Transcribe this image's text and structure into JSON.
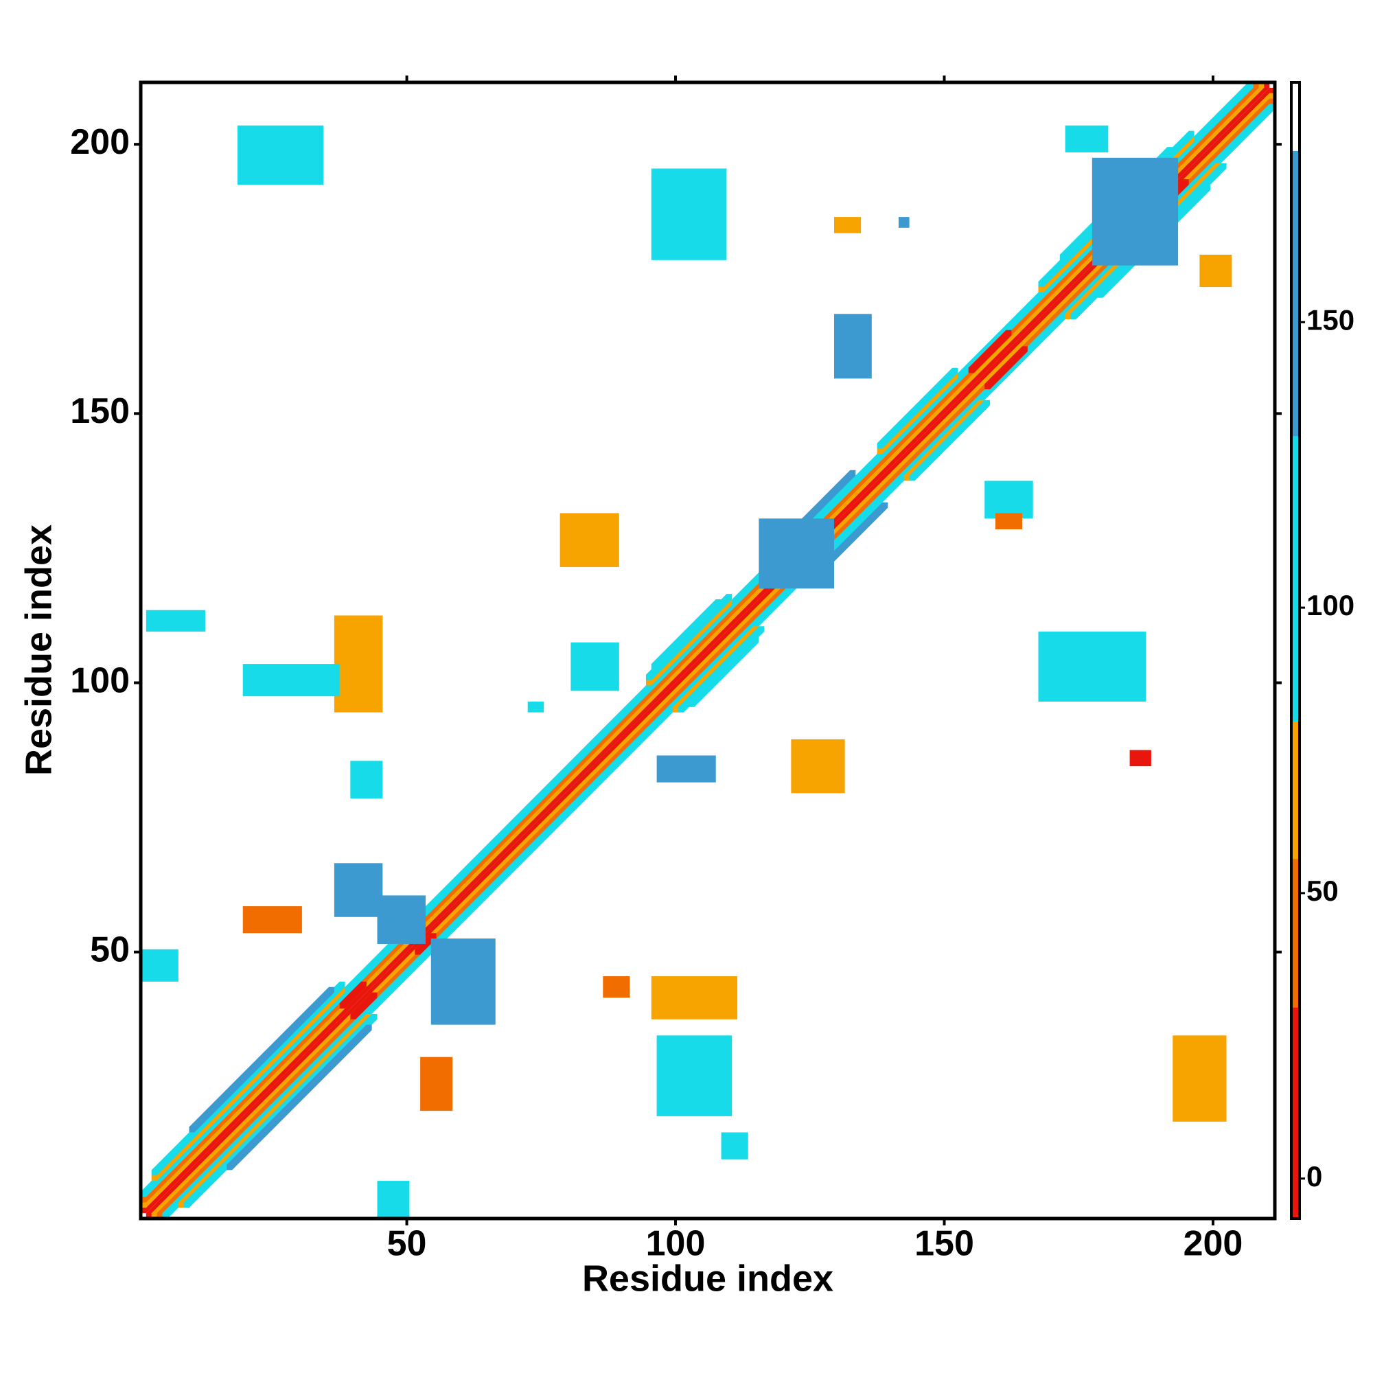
{
  "chart_data": {
    "type": "heatmap",
    "xlabel": "Residue index",
    "ylabel": "Residue index",
    "xlim": [
      0.5,
      211.5
    ],
    "ylim": [
      0.5,
      211.5
    ],
    "xticks": [
      50,
      100,
      150,
      200
    ],
    "yticks": [
      50,
      100,
      150,
      200
    ],
    "colorbar": {
      "lim": [
        -7,
        192
      ],
      "ticks": [
        0,
        50,
        100,
        150
      ],
      "bins": [
        -7,
        30,
        56,
        80,
        130,
        180,
        192
      ],
      "colors": [
        "#e8160c",
        "#f26d00",
        "#f7a300",
        "#17dbe8",
        "#3d9ad1",
        "#ffffff"
      ]
    },
    "diagonals": [
      [
        1,
        1,
        210,
        25
      ],
      [
        2,
        1,
        209,
        62
      ],
      [
        3,
        1,
        208,
        42
      ],
      [
        4,
        1,
        207,
        92
      ],
      [
        5,
        3,
        38,
        65
      ],
      [
        5,
        95,
        110,
        60
      ],
      [
        5,
        120,
        133,
        95
      ],
      [
        5,
        138,
        152,
        60
      ],
      [
        5,
        168,
        196,
        60
      ],
      [
        6,
        3,
        38,
        95
      ],
      [
        6,
        95,
        110,
        95
      ],
      [
        6,
        120,
        133,
        140
      ],
      [
        6,
        138,
        152,
        95
      ],
      [
        6,
        168,
        196,
        95
      ],
      [
        7,
        10,
        36,
        140
      ],
      [
        7,
        96,
        108,
        120
      ],
      [
        7,
        172,
        192,
        100
      ],
      [
        2,
        38,
        42,
        15
      ],
      [
        2,
        50,
        53,
        15
      ],
      [
        2,
        190,
        193,
        15
      ],
      [
        3,
        155,
        162,
        20
      ]
    ],
    "blocks": [
      [
        37,
        45,
        57,
        66,
        140
      ],
      [
        55,
        66,
        37,
        52,
        140
      ],
      [
        45,
        53,
        52,
        60,
        140
      ],
      [
        96,
        111,
        38,
        45,
        60
      ],
      [
        37,
        45,
        95,
        112,
        60
      ],
      [
        1,
        7,
        45,
        50,
        95
      ],
      [
        20,
        30,
        54,
        58,
        40
      ],
      [
        53,
        58,
        21,
        30,
        40
      ],
      [
        45,
        50,
        1,
        7,
        95
      ],
      [
        109,
        113,
        12,
        16,
        95
      ],
      [
        193,
        202,
        19,
        34,
        60
      ],
      [
        168,
        187,
        97,
        109,
        120
      ],
      [
        158,
        166,
        131,
        137,
        100
      ],
      [
        130,
        136,
        157,
        168,
        130
      ],
      [
        96,
        109,
        179,
        195,
        110
      ],
      [
        19,
        34,
        193,
        203,
        95
      ],
      [
        173,
        180,
        199,
        203,
        95
      ],
      [
        198,
        203,
        174,
        179,
        60
      ],
      [
        79,
        89,
        122,
        131,
        60
      ],
      [
        81,
        89,
        99,
        107,
        95
      ],
      [
        97,
        107,
        82,
        86,
        130
      ],
      [
        122,
        131,
        80,
        89,
        60
      ],
      [
        185,
        188,
        85,
        87,
        20
      ],
      [
        40,
        45,
        79,
        85,
        95
      ],
      [
        73,
        75,
        95,
        96,
        95
      ],
      [
        130,
        134,
        184,
        186,
        60
      ],
      [
        116,
        129,
        118,
        130,
        140
      ],
      [
        178,
        193,
        178,
        197,
        140
      ],
      [
        2,
        12,
        110,
        113,
        95
      ],
      [
        20,
        37,
        98,
        103,
        95
      ],
      [
        97,
        110,
        20,
        34,
        95
      ],
      [
        142,
        143,
        185,
        186,
        130
      ],
      [
        160,
        164,
        129,
        131,
        40
      ],
      [
        87,
        91,
        42,
        45,
        40
      ]
    ]
  }
}
